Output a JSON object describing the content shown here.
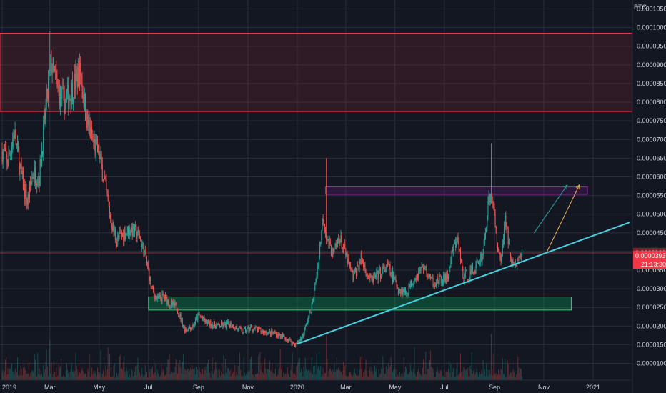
{
  "chart_data": {
    "type": "candlestick",
    "currency_label": "BTC",
    "y_ticks": [
      "0.00001000",
      "0.00001500",
      "0.00002000",
      "0.00002500",
      "0.00003000",
      "0.00003500",
      "0.00004000",
      "0.00004500",
      "0.00005000",
      "0.00005500",
      "0.00006000",
      "0.00006500",
      "0.00007000",
      "0.00007500",
      "0.00008000",
      "0.00008500",
      "0.00009000",
      "0.00009500",
      "0.00010000",
      "0.00010500"
    ],
    "ylim": [
      5.5e-06,
      0.0001074
    ],
    "x_ticks": [
      {
        "label": "2019",
        "date": "2019-01-01"
      },
      {
        "label": "Mar",
        "date": "2019-03-01"
      },
      {
        "label": "May",
        "date": "2019-05-01"
      },
      {
        "label": "Jul",
        "date": "2019-07-01"
      },
      {
        "label": "Sep",
        "date": "2019-09-01"
      },
      {
        "label": "Nov",
        "date": "2019-11-01"
      },
      {
        "label": "2020",
        "date": "2020-01-01"
      },
      {
        "label": "Mar",
        "date": "2020-03-01"
      },
      {
        "label": "May",
        "date": "2020-05-01"
      },
      {
        "label": "Jul",
        "date": "2020-07-01"
      },
      {
        "label": "Sep",
        "date": "2020-09-01"
      },
      {
        "label": "Nov",
        "date": "2020-11-01"
      },
      {
        "label": "2021",
        "date": "2021-01-01"
      }
    ],
    "price_path": [
      [
        "2019-01-01",
        6.7e-05
      ],
      [
        "2019-01-08",
        6.4e-05
      ],
      [
        "2019-01-16",
        7.2e-05
      ],
      [
        "2019-01-24",
        6.1e-05
      ],
      [
        "2019-02-01",
        5.3e-05
      ],
      [
        "2019-02-08",
        6.1e-05
      ],
      [
        "2019-02-16",
        6e-05
      ],
      [
        "2019-02-22",
        7.4e-05
      ],
      [
        "2019-02-28",
        8.6e-05
      ],
      [
        "2019-03-03",
        9.05e-05
      ],
      [
        "2019-03-10",
        8.4e-05
      ],
      [
        "2019-03-18",
        8e-05
      ],
      [
        "2019-03-26",
        8.2e-05
      ],
      [
        "2019-04-02",
        8.6e-05
      ],
      [
        "2019-04-08",
        8.8e-05
      ],
      [
        "2019-04-15",
        7.6e-05
      ],
      [
        "2019-04-22",
        7e-05
      ],
      [
        "2019-05-01",
        6.6e-05
      ],
      [
        "2019-05-08",
        5.8e-05
      ],
      [
        "2019-05-15",
        4.9e-05
      ],
      [
        "2019-05-22",
        4.3e-05
      ],
      [
        "2019-06-01",
        4.5e-05
      ],
      [
        "2019-06-10",
        4.6e-05
      ],
      [
        "2019-06-20",
        4.4e-05
      ],
      [
        "2019-06-28",
        3.8e-05
      ],
      [
        "2019-07-05",
        3e-05
      ],
      [
        "2019-07-12",
        2.7e-05
      ],
      [
        "2019-07-20",
        2.8e-05
      ],
      [
        "2019-07-28",
        2.6e-05
      ],
      [
        "2019-08-05",
        2.5e-05
      ],
      [
        "2019-08-15",
        1.9e-05
      ],
      [
        "2019-08-25",
        2e-05
      ],
      [
        "2019-09-01",
        2.3e-05
      ],
      [
        "2019-09-10",
        2.1e-05
      ],
      [
        "2019-09-25",
        2e-05
      ],
      [
        "2019-10-10",
        2.05e-05
      ],
      [
        "2019-10-25",
        1.85e-05
      ],
      [
        "2019-11-05",
        1.95e-05
      ],
      [
        "2019-11-20",
        1.85e-05
      ],
      [
        "2019-12-05",
        1.8e-05
      ],
      [
        "2019-12-20",
        1.65e-05
      ],
      [
        "2019-12-30",
        1.5e-05
      ],
      [
        "2020-01-08",
        1.75e-05
      ],
      [
        "2020-01-20",
        2.6e-05
      ],
      [
        "2020-01-28",
        3.9e-05
      ],
      [
        "2020-02-02",
        5e-05
      ],
      [
        "2020-02-08",
        4.2e-05
      ],
      [
        "2020-02-15",
        3.9e-05
      ],
      [
        "2020-02-22",
        4.4e-05
      ],
      [
        "2020-03-01",
        3.9e-05
      ],
      [
        "2020-03-10",
        3.3e-05
      ],
      [
        "2020-03-20",
        3.8e-05
      ],
      [
        "2020-04-01",
        3.2e-05
      ],
      [
        "2020-04-12",
        3.4e-05
      ],
      [
        "2020-04-22",
        3.6e-05
      ],
      [
        "2020-05-05",
        3e-05
      ],
      [
        "2020-05-15",
        2.9e-05
      ],
      [
        "2020-05-25",
        3.3e-05
      ],
      [
        "2020-06-05",
        3.6e-05
      ],
      [
        "2020-06-15",
        3.2e-05
      ],
      [
        "2020-06-25",
        3.2e-05
      ],
      [
        "2020-07-05",
        3.3e-05
      ],
      [
        "2020-07-12",
        4.1e-05
      ],
      [
        "2020-07-18",
        4.3e-05
      ],
      [
        "2020-07-24",
        3.3e-05
      ],
      [
        "2020-08-01",
        3.4e-05
      ],
      [
        "2020-08-10",
        3.6e-05
      ],
      [
        "2020-08-18",
        4e-05
      ],
      [
        "2020-08-24",
        5.2e-05
      ],
      [
        "2020-08-28",
        5.6e-05
      ],
      [
        "2020-09-03",
        4.5e-05
      ],
      [
        "2020-09-08",
        3.7e-05
      ],
      [
        "2020-09-14",
        4.8e-05
      ],
      [
        "2020-09-20",
        4.1e-05
      ],
      [
        "2020-09-24",
        3.6e-05
      ],
      [
        "2020-10-01",
        3.8e-05
      ],
      [
        "2020-10-05",
        3.95e-05
      ]
    ],
    "spike_highs": [
      [
        "2019-03-01",
        9.9e-05
      ],
      [
        "2020-02-06",
        6.5e-05
      ],
      [
        "2020-08-28",
        6.9e-05
      ]
    ],
    "resistance_zone": {
      "from": 7.75e-05,
      "to": 9.85e-05
    },
    "support_zone": {
      "from": "2019-07-01",
      "to": "2020-12-05",
      "low": 2.43e-05,
      "high": 2.78e-05
    },
    "target_zone": {
      "from": "2020-02-05",
      "to": "2020-12-25",
      "low": 5.53e-05,
      "high": 5.73e-05
    },
    "trendline": {
      "from": [
        "2020-01-01",
        1.52e-05
      ],
      "to": [
        "2021-02-15",
        4.78e-05
      ]
    },
    "horizontal_line": 3.96e-05,
    "arrows": [
      {
        "from": [
          "2020-10-20",
          4.5e-05
        ],
        "to": [
          "2020-11-30",
          5.78e-05
        ],
        "color": "#26a69a"
      },
      {
        "from": [
          "2020-11-05",
          4e-05
        ],
        "to": [
          "2020-12-15",
          5.78e-05
        ],
        "color": "#f5b461"
      }
    ],
    "price_labels": {
      "current_line": "0.00003964",
      "last_price": "0.00003938",
      "countdown": "21:13:30"
    },
    "colors": {
      "up": "#26a69a",
      "down": "#ef5350",
      "resistance": "#f23645",
      "support": "#00e676",
      "target": "#9c27b0",
      "trendline": "#48d1e0",
      "background": "#131722",
      "grid": "#2a2e39"
    }
  }
}
